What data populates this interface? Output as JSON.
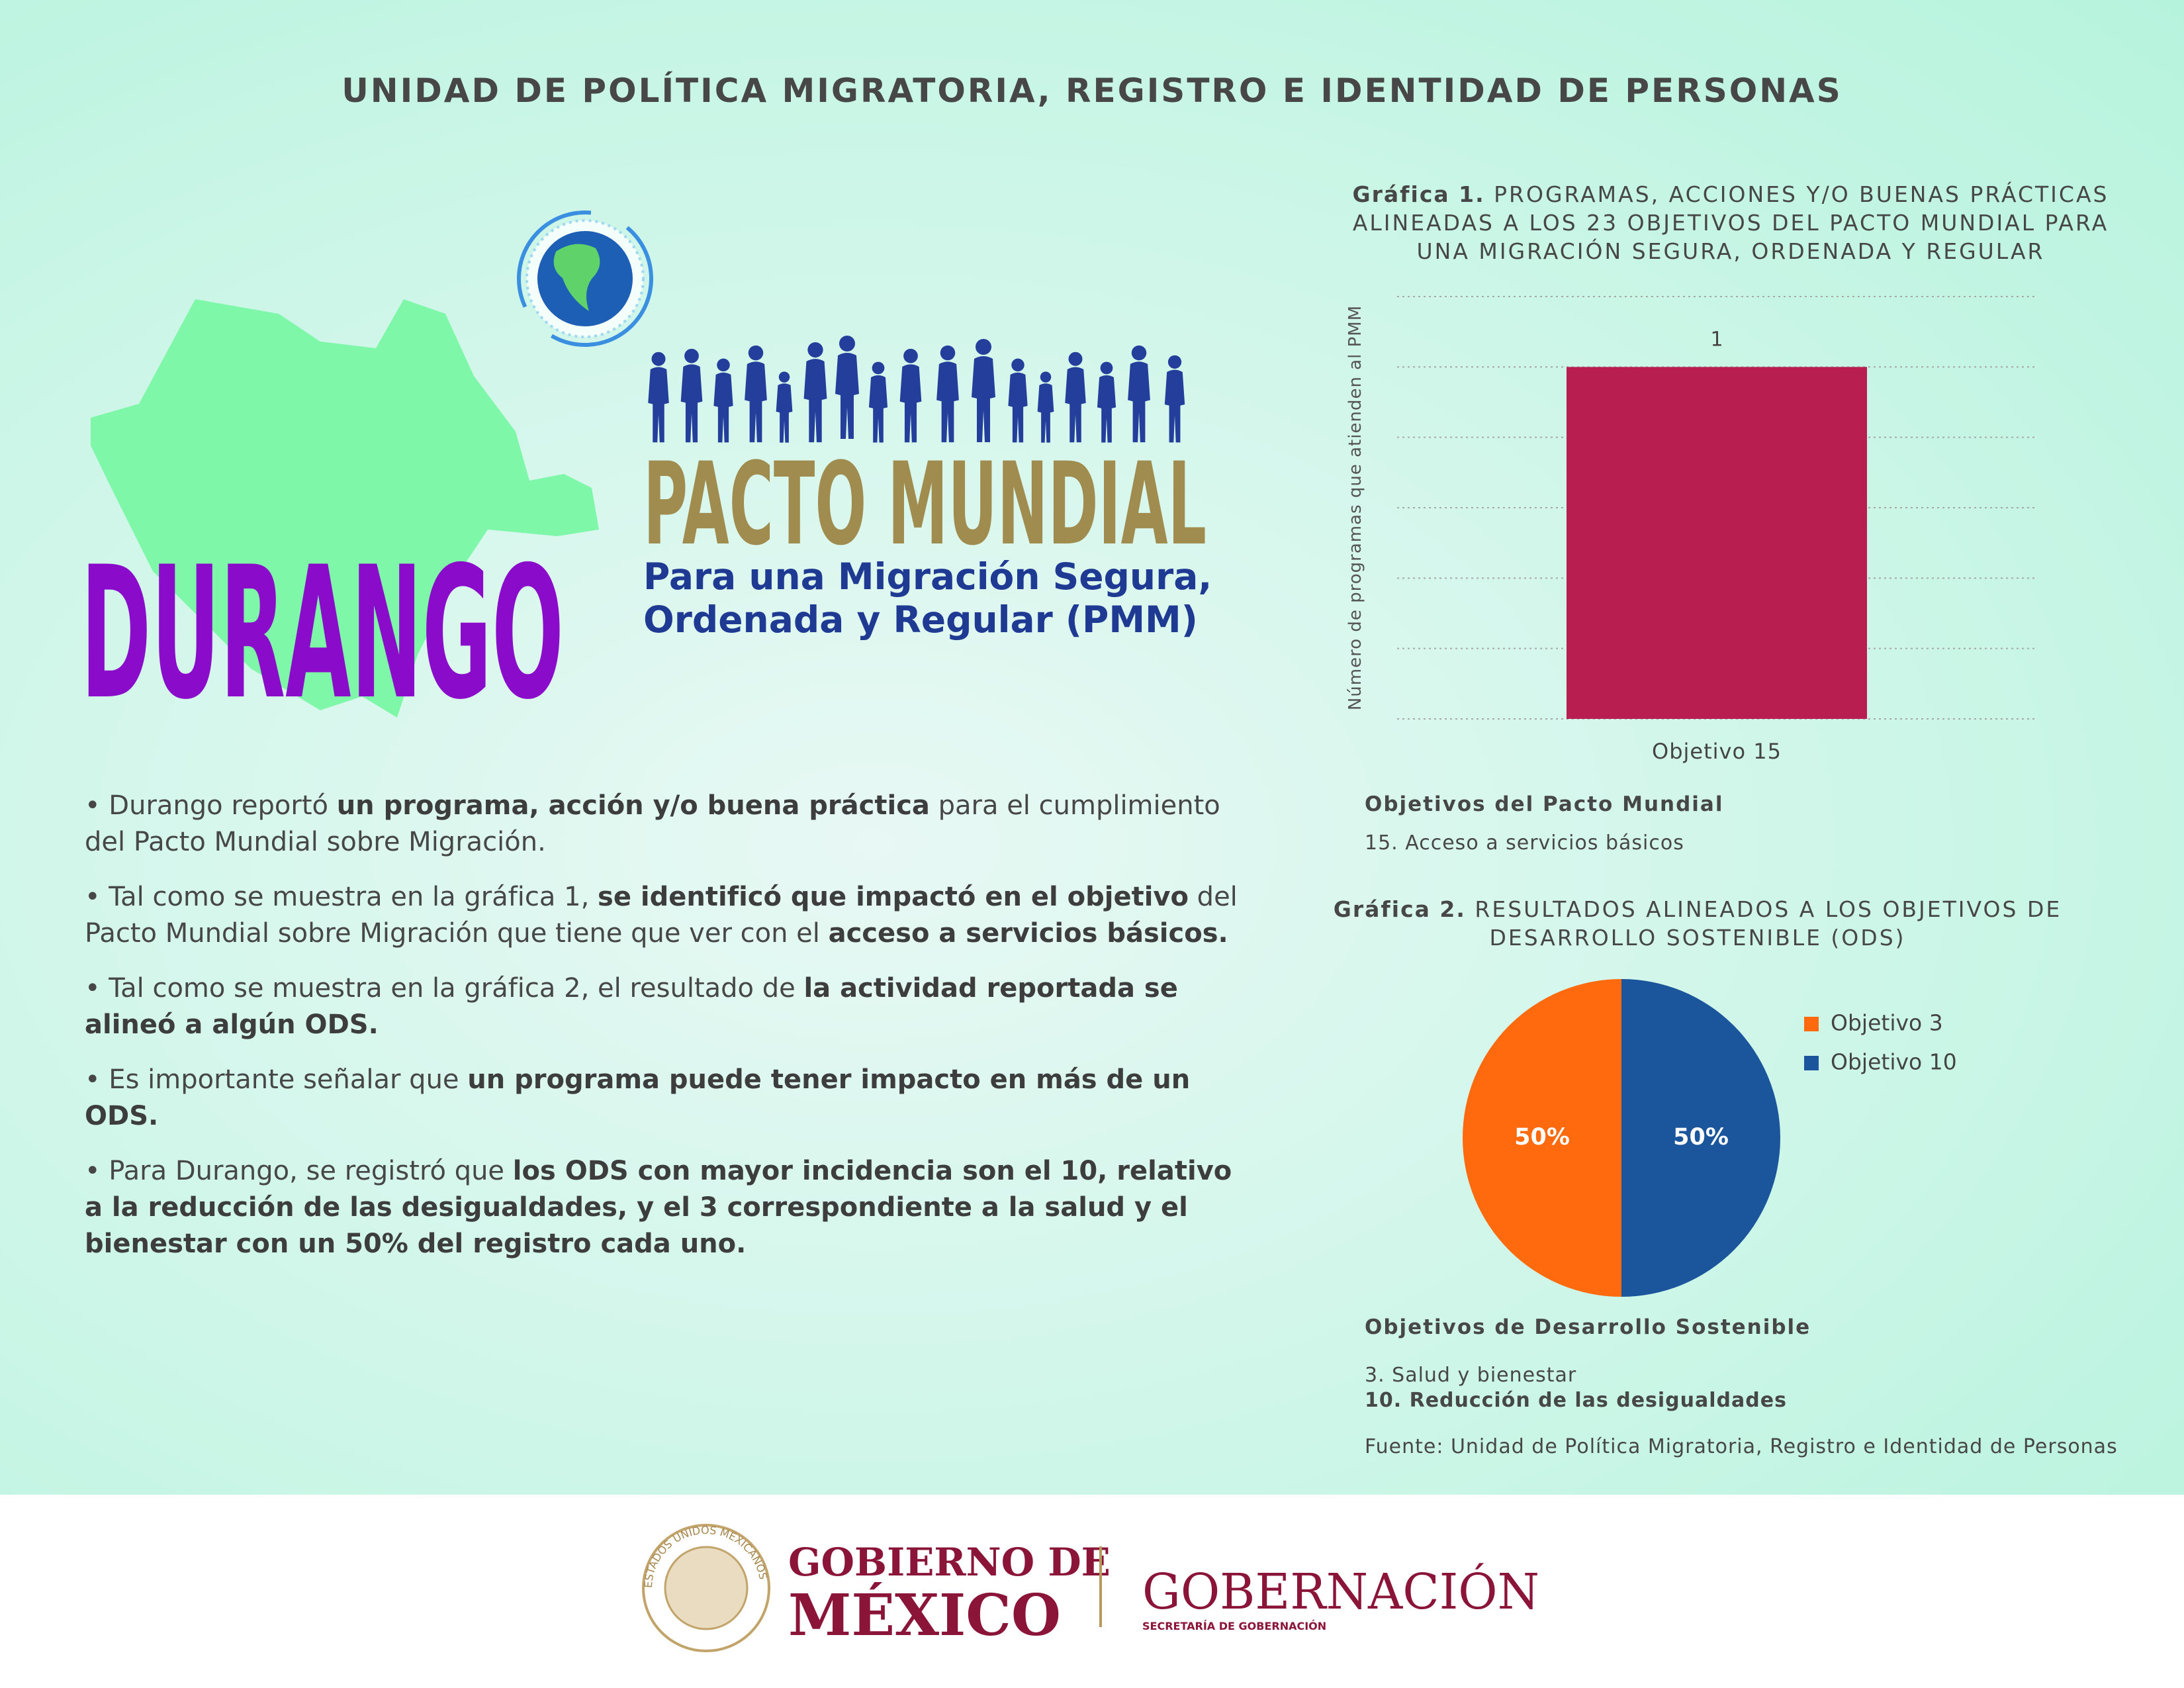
{
  "header": {
    "title": "UNIDAD DE POLÍTICA MIGRATORIA, REGISTRO E IDENTIDAD DE PERSONAS"
  },
  "state": "DURANGO",
  "logo": {
    "title": "PACTO MUNDIAL",
    "subtitle": [
      "Para una Migración Segura,",
      "Ordenada y Regular (PMM)"
    ]
  },
  "bullets": [
    [
      {
        "text": "• Durango reportó "
      },
      {
        "text": "un programa, acción y/o buena práctica",
        "bold": true
      },
      {
        "text": " para el cumplimiento del Pacto Mundial sobre Migración."
      }
    ],
    [
      {
        "text": "• Tal como se muestra en la gráfica 1, "
      },
      {
        "text": "se identificó que impactó en el objetivo",
        "bold": true
      },
      {
        "text": " del Pacto Mundial sobre Migración que tiene que ver con el "
      },
      {
        "text": "acceso a servicios básicos.",
        "bold": true
      }
    ],
    [
      {
        "text": "• Tal como se muestra en la gráfica 2, el resultado de "
      },
      {
        "text": "la actividad reportada se alineó a algún ODS.",
        "bold": true
      }
    ],
    [
      {
        "text": "• Es importante señalar que "
      },
      {
        "text": "un programa puede tener impacto en más de un ODS.",
        "bold": true
      }
    ],
    [
      {
        "text": "• Para Durango, se registró que "
      },
      {
        "text": "los ODS con mayor incidencia son el 10, relativo a la reducción de las desigualdades, y el 3 correspondiente a la salud y el bienestar con un 50% del registro cada uno.",
        "bold": true
      }
    ]
  ],
  "chart_data": [
    {
      "type": "bar",
      "title_label": "Gráfica 1.",
      "title": "PROGRAMAS, ACCIONES Y/O BUENAS PRÁCTICAS ALINEADAS A LOS 23 OBJETIVOS DEL PACTO MUNDIAL PARA UNA MIGRACIÓN SEGURA, ORDENADA Y REGULAR",
      "ylabel": "Número de programas que atienden al PMM",
      "categories": [
        "Objetivo 15"
      ],
      "values": [
        1
      ],
      "color": "#b81f50",
      "ylim": [
        0,
        1.2
      ],
      "yticks": [
        0,
        0.2,
        0.4,
        0.6,
        0.8,
        1,
        1.2
      ],
      "grid": true,
      "notes_title": "Objetivos del Pacto Mundial",
      "notes": [
        "15. Acceso a servicios básicos"
      ]
    },
    {
      "type": "pie",
      "title_label": "Gráfica 2.",
      "title": "RESULTADOS ALINEADOS A LOS OBJETIVOS DE DESARROLLO SOSTENIBLE (ODS)",
      "series": [
        {
          "name": "Objetivo 3",
          "color": "#ff6a0e"
        },
        {
          "name": "Objetivo 10",
          "color": "#1b559c"
        }
      ],
      "values": [
        50,
        50
      ],
      "value_labels": [
        "50%",
        "50%"
      ],
      "legend": "right",
      "notes_title": "Objetivos de Desarrollo Sostenible",
      "notes": [
        "3. Salud y bienestar",
        "10. Reducción de las desigualdades"
      ],
      "source": "Fuente: Unidad de Política Migratoria, Registro e Identidad de Personas"
    }
  ],
  "footer": {
    "seal": "ESTADOS UNIDOS MEXICANOS",
    "gov_line1": "GOBIERNO DE",
    "gov_line2": "MÉXICO",
    "ministry": "GOBERNACIÓN",
    "ministry_sub": "SECRETARÍA DE GOBERNACIÓN"
  }
}
